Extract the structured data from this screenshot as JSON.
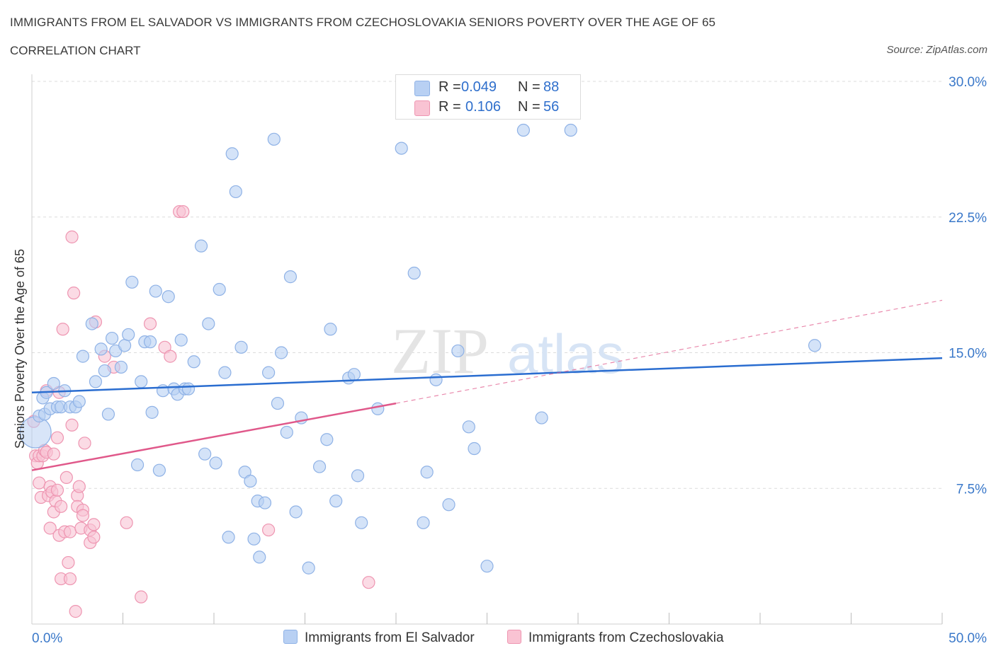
{
  "header": {
    "title": "IMMIGRANTS FROM EL SALVADOR VS IMMIGRANTS FROM CZECHOSLOVAKIA SENIORS POVERTY OVER THE AGE OF 65",
    "subtitle": "CORRELATION CHART",
    "source": "Source: ZipAtlas.com"
  },
  "legend_top": {
    "rows": [
      {
        "r_label": "R =",
        "r_value": "0.049",
        "n_label": "N =",
        "n_value": "88"
      },
      {
        "r_label": "R =",
        "r_value": "0.106",
        "n_label": "N =",
        "n_value": "56"
      }
    ]
  },
  "legend_bottom": {
    "items": [
      "Immigrants from El Salvador",
      "Immigrants from Czechoslovakia"
    ]
  },
  "watermark": {
    "zip": "ZIP",
    "atlas": "atlas"
  },
  "colors": {
    "blue_fill": "#b8d0f3",
    "blue_stroke": "#8fb2e6",
    "blue_line": "#2a6dd0",
    "pink_fill": "#f9c3d3",
    "pink_stroke": "#ee95b1",
    "pink_line": "#e0588a",
    "tick_label": "#3a78c9",
    "grid": "#dcdcdc"
  },
  "chart_data": {
    "type": "scatter",
    "title": "IMMIGRANTS FROM EL SALVADOR VS IMMIGRANTS FROM CZECHOSLOVAKIA SENIORS POVERTY OVER THE AGE OF 65",
    "xlabel": "",
    "ylabel": "Seniors Poverty Over the Age of 65",
    "xlim": [
      0,
      50
    ],
    "ylim": [
      0,
      30
    ],
    "x_tick_labels": [
      "0.0%",
      "50.0%"
    ],
    "y_ticks": [
      7.5,
      15.0,
      22.5,
      30.0
    ],
    "y_tick_labels": [
      "7.5%",
      "15.0%",
      "22.5%",
      "30.0%"
    ],
    "grid": true,
    "legend_placement": "top-center",
    "series": [
      {
        "name": "Immigrants from El Salvador",
        "color": "#b8d0f3",
        "trend": {
          "x": [
            0,
            50
          ],
          "y": [
            12.8,
            14.7
          ],
          "style": "solid"
        },
        "points": [
          [
            0.2,
            10.6
          ],
          [
            0.4,
            11.5
          ],
          [
            0.6,
            12.5
          ],
          [
            0.7,
            11.6
          ],
          [
            0.8,
            12.8
          ],
          [
            1.0,
            11.9
          ],
          [
            1.2,
            13.3
          ],
          [
            1.4,
            12.0
          ],
          [
            1.6,
            12.0
          ],
          [
            1.8,
            12.9
          ],
          [
            2.1,
            12.0
          ],
          [
            2.4,
            12.0
          ],
          [
            2.6,
            12.3
          ],
          [
            2.8,
            14.8
          ],
          [
            3.3,
            16.6
          ],
          [
            3.5,
            13.4
          ],
          [
            3.8,
            15.2
          ],
          [
            4.0,
            14.0
          ],
          [
            4.2,
            11.6
          ],
          [
            4.4,
            15.8
          ],
          [
            4.6,
            15.1
          ],
          [
            4.9,
            14.2
          ],
          [
            5.1,
            15.4
          ],
          [
            5.3,
            16.0
          ],
          [
            5.5,
            18.9
          ],
          [
            5.8,
            8.8
          ],
          [
            6.0,
            13.4
          ],
          [
            6.2,
            15.6
          ],
          [
            6.5,
            15.6
          ],
          [
            6.6,
            11.7
          ],
          [
            6.8,
            18.4
          ],
          [
            7.0,
            8.5
          ],
          [
            7.2,
            12.9
          ],
          [
            7.5,
            18.1
          ],
          [
            7.8,
            13.0
          ],
          [
            8.0,
            12.7
          ],
          [
            8.2,
            15.7
          ],
          [
            8.4,
            13.0
          ],
          [
            8.6,
            13.0
          ],
          [
            8.9,
            14.5
          ],
          [
            9.3,
            20.9
          ],
          [
            9.5,
            9.4
          ],
          [
            9.7,
            16.6
          ],
          [
            10.1,
            8.9
          ],
          [
            10.3,
            18.5
          ],
          [
            10.6,
            13.9
          ],
          [
            10.8,
            4.8
          ],
          [
            11.0,
            26.0
          ],
          [
            11.2,
            23.9
          ],
          [
            11.5,
            15.3
          ],
          [
            11.7,
            8.4
          ],
          [
            12.0,
            7.9
          ],
          [
            12.2,
            4.7
          ],
          [
            12.4,
            6.8
          ],
          [
            12.5,
            3.7
          ],
          [
            12.8,
            6.7
          ],
          [
            13.0,
            13.9
          ],
          [
            13.3,
            26.8
          ],
          [
            13.5,
            12.2
          ],
          [
            13.7,
            15.0
          ],
          [
            14.0,
            10.6
          ],
          [
            14.2,
            19.2
          ],
          [
            14.5,
            6.2
          ],
          [
            14.8,
            11.4
          ],
          [
            15.2,
            3.1
          ],
          [
            15.8,
            8.7
          ],
          [
            16.2,
            10.2
          ],
          [
            16.4,
            16.3
          ],
          [
            16.7,
            6.8
          ],
          [
            17.4,
            13.6
          ],
          [
            17.7,
            13.8
          ],
          [
            17.9,
            8.2
          ],
          [
            18.1,
            5.6
          ],
          [
            19.0,
            11.9
          ],
          [
            20.3,
            26.3
          ],
          [
            21.0,
            19.4
          ],
          [
            21.5,
            5.6
          ],
          [
            21.7,
            8.4
          ],
          [
            22.2,
            13.5
          ],
          [
            22.9,
            6.6
          ],
          [
            23.4,
            15.1
          ],
          [
            24.0,
            10.9
          ],
          [
            24.3,
            9.7
          ],
          [
            25.0,
            3.2
          ],
          [
            27.0,
            27.3
          ],
          [
            28.0,
            11.4
          ],
          [
            29.6,
            27.3
          ],
          [
            43.0,
            15.4
          ]
        ]
      },
      {
        "name": "Immigrants from Czechoslovakia",
        "color": "#f9c3d3",
        "trend": {
          "x": [
            0,
            20
          ],
          "y": [
            8.5,
            12.2
          ],
          "style": "solid",
          "extension": {
            "x": [
              20,
              50
            ],
            "y": [
              12.2,
              17.9
            ],
            "style": "dashed"
          }
        },
        "points": [
          [
            0.1,
            11.2
          ],
          [
            0.2,
            9.3
          ],
          [
            0.3,
            8.9
          ],
          [
            0.4,
            9.3
          ],
          [
            0.4,
            7.8
          ],
          [
            0.5,
            7.0
          ],
          [
            0.6,
            9.3
          ],
          [
            0.7,
            9.6
          ],
          [
            0.8,
            9.5
          ],
          [
            0.8,
            12.9
          ],
          [
            0.9,
            7.1
          ],
          [
            1.0,
            5.3
          ],
          [
            1.0,
            7.6
          ],
          [
            1.1,
            7.3
          ],
          [
            1.2,
            6.2
          ],
          [
            1.2,
            9.4
          ],
          [
            1.3,
            6.8
          ],
          [
            1.4,
            7.4
          ],
          [
            1.4,
            10.3
          ],
          [
            1.5,
            12.8
          ],
          [
            1.5,
            4.9
          ],
          [
            1.6,
            2.5
          ],
          [
            1.6,
            6.5
          ],
          [
            1.7,
            16.3
          ],
          [
            1.8,
            5.1
          ],
          [
            1.9,
            8.1
          ],
          [
            2.0,
            3.4
          ],
          [
            2.1,
            5.1
          ],
          [
            2.1,
            2.5
          ],
          [
            2.2,
            21.4
          ],
          [
            2.2,
            11.0
          ],
          [
            2.3,
            18.3
          ],
          [
            2.4,
            0.7
          ],
          [
            2.5,
            7.1
          ],
          [
            2.5,
            6.5
          ],
          [
            2.6,
            7.6
          ],
          [
            2.7,
            5.3
          ],
          [
            2.8,
            6.3
          ],
          [
            2.8,
            6.0
          ],
          [
            2.9,
            10.0
          ],
          [
            3.2,
            5.2
          ],
          [
            3.2,
            4.5
          ],
          [
            3.4,
            4.8
          ],
          [
            3.4,
            5.5
          ],
          [
            3.5,
            16.7
          ],
          [
            4.0,
            14.8
          ],
          [
            4.5,
            14.2
          ],
          [
            5.2,
            5.6
          ],
          [
            6.0,
            1.5
          ],
          [
            6.5,
            16.6
          ],
          [
            7.3,
            15.3
          ],
          [
            7.6,
            14.8
          ],
          [
            8.1,
            22.8
          ],
          [
            8.3,
            22.8
          ],
          [
            13.0,
            5.2
          ],
          [
            18.5,
            2.3
          ]
        ]
      }
    ]
  }
}
